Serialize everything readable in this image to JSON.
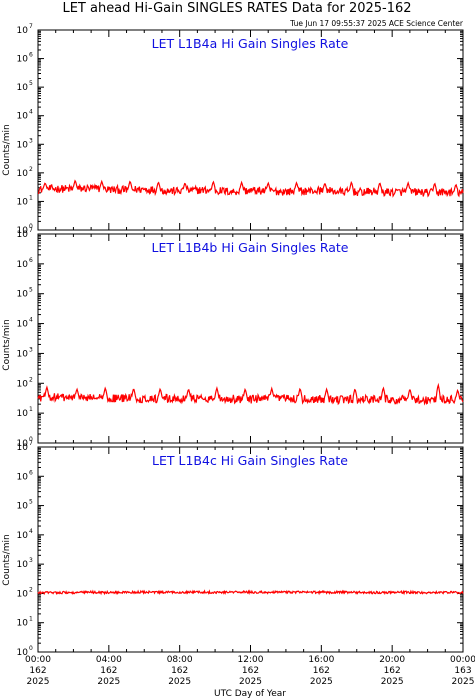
{
  "title": "LET ahead Hi-Gain SINGLES RATES Data for 2025-162",
  "timestamp": "Tue Jun 17 09:55:37 2025 ACE Science Center",
  "colors": {
    "series": "#ff0000",
    "panel_title": "#1010e0",
    "axes": "#000000"
  },
  "chart_data": {
    "type": "line",
    "xlabel": "UTC Day of Year",
    "ylabel": "Counts/min",
    "ylim": [
      1,
      10000000
    ],
    "yscale": "log",
    "y_tick_labels": [
      {
        "base": "10",
        "exp": "0"
      },
      {
        "base": "10",
        "exp": "1"
      },
      {
        "base": "10",
        "exp": "2"
      },
      {
        "base": "10",
        "exp": "3"
      },
      {
        "base": "10",
        "exp": "4"
      },
      {
        "base": "10",
        "exp": "5"
      },
      {
        "base": "10",
        "exp": "6"
      },
      {
        "base": "10",
        "exp": "7"
      }
    ],
    "xlim_hours": [
      0,
      24
    ],
    "x_ticks": [
      {
        "time": "00:00",
        "day": "162",
        "year": "2025"
      },
      {
        "time": "04:00",
        "day": "162",
        "year": "2025"
      },
      {
        "time": "08:00",
        "day": "162",
        "year": "2025"
      },
      {
        "time": "12:00",
        "day": "162",
        "year": "2025"
      },
      {
        "time": "16:00",
        "day": "162",
        "year": "2025"
      },
      {
        "time": "20:00",
        "day": "162",
        "year": "2025"
      },
      {
        "time": "00:00",
        "day": "163",
        "year": "2025"
      }
    ],
    "panels": [
      {
        "title": "LET L1B4a Hi Gain Singles Rate",
        "hours": [
          0,
          1,
          2,
          3,
          4,
          5,
          6,
          7,
          8,
          9,
          10,
          11,
          12,
          13,
          14,
          15,
          16,
          17,
          18,
          19,
          20,
          21,
          22,
          23,
          24
        ],
        "values": [
          26,
          28,
          27,
          29,
          26,
          25,
          27,
          24,
          23,
          25,
          24,
          22,
          24,
          23,
          22,
          23,
          24,
          22,
          21,
          22,
          21,
          22,
          20,
          21,
          20
        ],
        "spikes_hours": [
          0.4,
          2.1,
          3.6,
          5.2,
          6.8,
          8.3,
          9.9,
          11.5,
          13.0,
          14.6,
          16.2,
          17.7,
          19.3,
          20.9,
          22.4,
          23.6
        ],
        "spike_values": [
          45,
          55,
          50,
          52,
          48,
          45,
          50,
          47,
          45,
          46,
          44,
          48,
          46,
          45,
          44,
          40
        ]
      },
      {
        "title": "LET L1B4b Hi Gain Singles Rate",
        "hours": [
          0,
          1,
          2,
          3,
          4,
          5,
          6,
          7,
          8,
          9,
          10,
          11,
          12,
          13,
          14,
          15,
          16,
          17,
          18,
          19,
          20,
          21,
          22,
          23,
          24
        ],
        "values": [
          33,
          34,
          32,
          33,
          31,
          32,
          30,
          31,
          30,
          32,
          31,
          30,
          29,
          30,
          31,
          29,
          30,
          28,
          29,
          30,
          28,
          29,
          28,
          29,
          28
        ],
        "spikes_hours": [
          0.5,
          2.2,
          3.8,
          5.4,
          6.9,
          8.5,
          10.1,
          11.7,
          13.2,
          14.8,
          16.3,
          17.9,
          19.5,
          21.0,
          22.6,
          23.7
        ],
        "spike_values": [
          75,
          65,
          70,
          68,
          66,
          65,
          70,
          65,
          67,
          68,
          64,
          66,
          72,
          65,
          90,
          60
        ]
      },
      {
        "title": "LET L1B4c Hi Gain Singles Rate",
        "hours": [
          0,
          1,
          2,
          3,
          4,
          5,
          6,
          7,
          8,
          9,
          10,
          11,
          12,
          13,
          14,
          15,
          16,
          17,
          18,
          19,
          20,
          21,
          22,
          23,
          24
        ],
        "values": [
          105,
          108,
          106,
          110,
          107,
          109,
          111,
          108,
          110,
          112,
          109,
          111,
          110,
          108,
          112,
          110,
          109,
          111,
          108,
          107,
          110,
          109,
          106,
          108,
          107
        ],
        "spikes_hours": [],
        "spike_values": []
      }
    ]
  }
}
